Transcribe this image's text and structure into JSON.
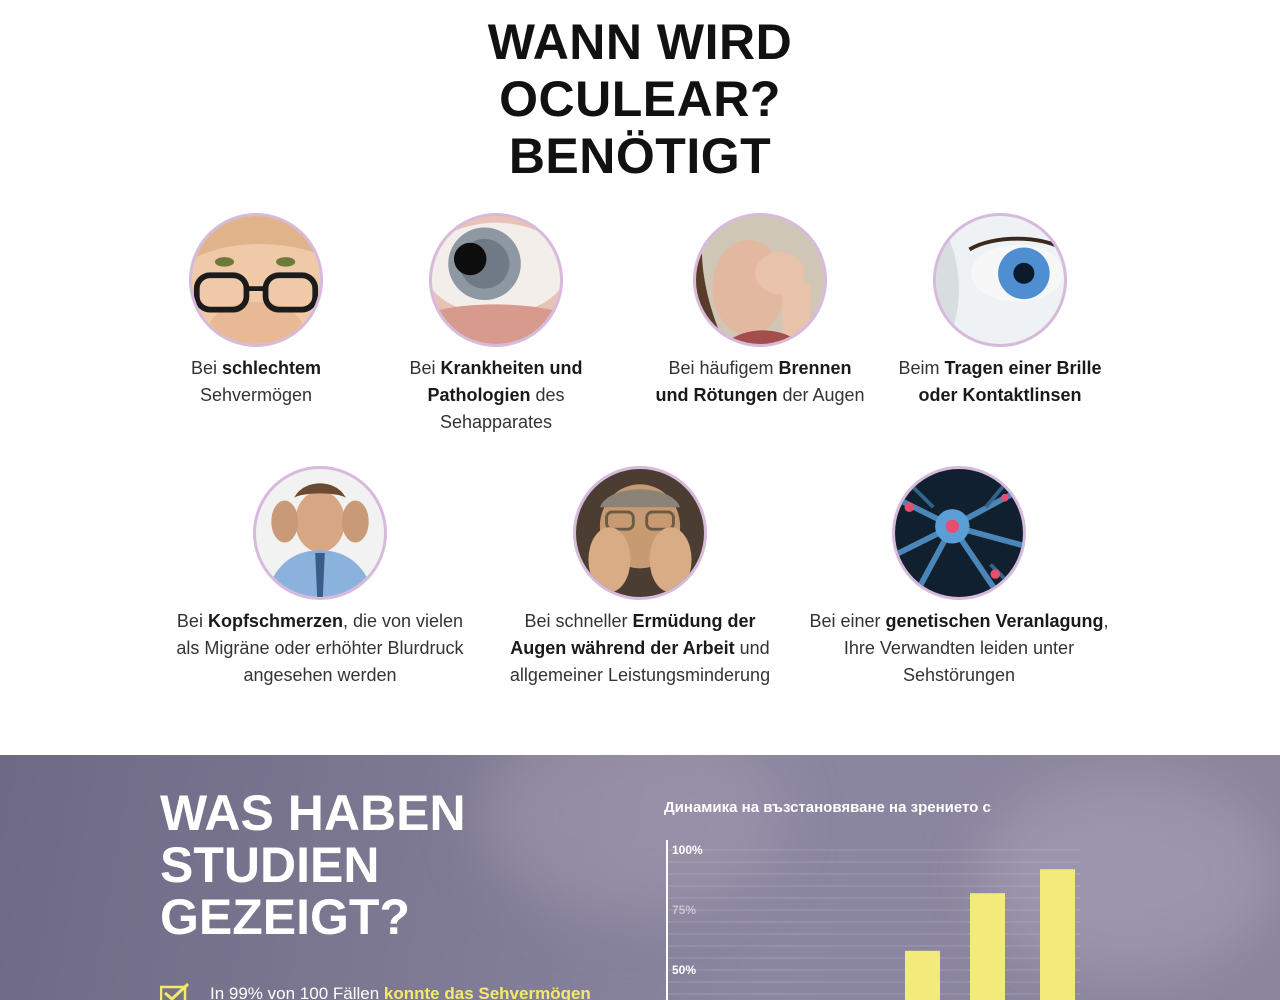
{
  "heading": {
    "line1": "WANN WIRD",
    "line2": "OCULEAR?",
    "line3": "BENÖTIGT"
  },
  "items": [
    {
      "icon": "woman-glasses-image",
      "pre": "Bei ",
      "bold": "schlechtem",
      "post": " Sehvermögen"
    },
    {
      "icon": "eye-closeup-image",
      "pre": "Bei ",
      "bold": "Krankheiten und Pathologien",
      "post": " des Sehapparates"
    },
    {
      "icon": "woman-rubbing-eye-image",
      "pre": "Bei häufigem ",
      "bold": "Brennen und Rötungen",
      "post": " der Augen"
    },
    {
      "icon": "blue-eye-image",
      "pre": "Beim ",
      "bold": "Tragen einer Brille oder Kontaktlinsen",
      "post": ""
    },
    {
      "icon": "man-headache-image",
      "pre": "Bei ",
      "bold": "Kopfschmerzen",
      "post": ", die von vielen als Migräne oder erhöhter Blurdruck angesehen werden"
    },
    {
      "icon": "tired-man-image",
      "pre": "Bei schneller ",
      "bold": "Ermüdung der Augen während der Arbeit",
      "post": " und allgemeiner Leistungsminderung"
    },
    {
      "icon": "neuron-cells-image",
      "pre": "Bei einer ",
      "bold": "genetischen Veranlagung",
      "post": ", Ihre Verwandten leiden unter Sehstörungen"
    }
  ],
  "studies": {
    "title_line1": "WAS HABEN",
    "title_line2": "STUDIEN",
    "title_line3": "GEZEIGT?",
    "finding_pre": "In 99% von 100 Fällen ",
    "finding_highlight": "konnte das Sehvermögen"
  },
  "chart_data": {
    "type": "bar",
    "title": "Динамика на възстановяване на зрението с",
    "yticks": [
      "100%",
      "75%",
      "50%"
    ],
    "ylim": [
      0,
      100
    ],
    "bar_color": "#f3ea7c",
    "values": [
      36,
      58,
      82,
      92
    ]
  }
}
